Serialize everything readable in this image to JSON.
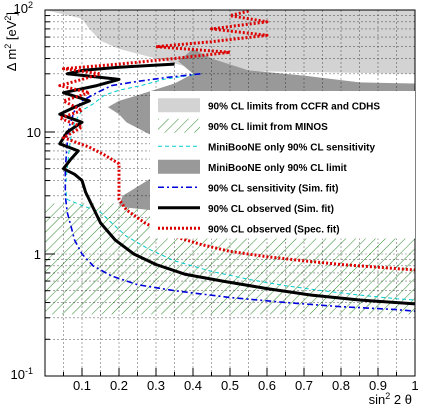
{
  "chart_data": {
    "type": "line",
    "title": "",
    "xlabel": "sin² 2 θ",
    "ylabel": "Δ m² [eV²]",
    "xlim": [
      0,
      1
    ],
    "ylim": [
      0.1,
      100
    ],
    "yscale": "log",
    "grid": true,
    "x_ticks": [
      {
        "value": 0.1,
        "label": "0.1"
      },
      {
        "value": 0.2,
        "label": "0.2"
      },
      {
        "value": 0.3,
        "label": "0.3"
      },
      {
        "value": 0.4,
        "label": "0.4"
      },
      {
        "value": 0.5,
        "label": "0.5"
      },
      {
        "value": 0.6,
        "label": "0.6"
      },
      {
        "value": 0.7,
        "label": "0.7"
      },
      {
        "value": 0.8,
        "label": "0.8"
      },
      {
        "value": 0.9,
        "label": "0.9"
      },
      {
        "value": 1.0,
        "label": "1"
      }
    ],
    "y_ticks": [
      {
        "value": 0.1,
        "label": "10",
        "sup": "-1"
      },
      {
        "value": 1,
        "label": "1",
        "sup": ""
      },
      {
        "value": 10,
        "label": "10",
        "sup": ""
      },
      {
        "value": 100,
        "label": "10",
        "sup": "2"
      }
    ],
    "legend_position": "center-right",
    "series": [
      {
        "name": "90% CL limits from CCFR and CDHS",
        "style": "fill",
        "color": "#d3d3d3",
        "polygon": [
          [
            0,
            100
          ],
          [
            1,
            100
          ],
          [
            1,
            30
          ],
          [
            0.42,
            32
          ],
          [
            0.3,
            40
          ],
          [
            0.2,
            48
          ],
          [
            0.15,
            56
          ],
          [
            0.12,
            70
          ],
          [
            0.1,
            85
          ],
          [
            0,
            100
          ]
        ]
      },
      {
        "name": "90% CL limit from MINOS",
        "style": "hatch",
        "color": "#2e8b2e",
        "polygon": [
          [
            0,
            2.6
          ],
          [
            1,
            2.6
          ],
          [
            1,
            0.32
          ],
          [
            0,
            0.32
          ]
        ]
      },
      {
        "name": "MiniBooNE only 90% CL sensitivity",
        "style": "dashed",
        "color": "#00cccc",
        "points": [
          [
            0.42,
            30
          ],
          [
            0.32,
            27
          ],
          [
            0.26,
            24
          ],
          [
            0.2,
            22
          ],
          [
            0.16,
            20
          ],
          [
            0.13,
            17
          ],
          [
            0.1,
            15
          ],
          [
            0.08,
            12
          ],
          [
            0.07,
            9
          ],
          [
            0.065,
            7
          ],
          [
            0.06,
            5
          ],
          [
            0.055,
            3.5
          ],
          [
            0.06,
            2.8
          ],
          [
            0.1,
            2.5
          ],
          [
            0.15,
            2.2
          ],
          [
            0.18,
            1.8
          ],
          [
            0.22,
            1.4
          ],
          [
            0.28,
            1.1
          ],
          [
            0.35,
            0.88
          ],
          [
            0.45,
            0.72
          ],
          [
            0.55,
            0.62
          ],
          [
            0.65,
            0.55
          ],
          [
            0.75,
            0.5
          ],
          [
            0.85,
            0.46
          ],
          [
            0.95,
            0.43
          ],
          [
            1.0,
            0.42
          ]
        ]
      },
      {
        "name": "MiniBooNE only 90% CL limit",
        "style": "fill",
        "color": "#999999",
        "polygon": [
          [
            0.4,
            48
          ],
          [
            0.45,
            40
          ],
          [
            0.55,
            32
          ],
          [
            0.7,
            29
          ],
          [
            0.85,
            25.5
          ],
          [
            1,
            25
          ],
          [
            1,
            1.6
          ],
          [
            0.92,
            1.7
          ],
          [
            0.8,
            1.75
          ],
          [
            0.6,
            1.9
          ],
          [
            0.45,
            2
          ],
          [
            0.35,
            2.15
          ],
          [
            0.28,
            2.3
          ],
          [
            0.22,
            2.4
          ],
          [
            0.2,
            2.5
          ],
          [
            0.21,
            3
          ],
          [
            0.35,
            5.5
          ],
          [
            0.3,
            9
          ],
          [
            0.22,
            12
          ],
          [
            0.2,
            14
          ],
          [
            0.17,
            16
          ],
          [
            0.2,
            18
          ],
          [
            0.25,
            20
          ],
          [
            0.35,
            25
          ],
          [
            0.4,
            30
          ],
          [
            0.36,
            38
          ],
          [
            0.4,
            48
          ]
        ]
      },
      {
        "name": "90% CL sensitivity (Sim. fit)",
        "style": "dashdot",
        "color": "#0000dd",
        "points": [
          [
            0.42,
            30
          ],
          [
            0.33,
            28
          ],
          [
            0.25,
            26
          ],
          [
            0.18,
            24
          ],
          [
            0.14,
            21
          ],
          [
            0.1,
            18
          ],
          [
            0.08,
            15
          ],
          [
            0.065,
            11
          ],
          [
            0.06,
            8
          ],
          [
            0.055,
            5
          ],
          [
            0.055,
            3
          ],
          [
            0.06,
            2.2
          ],
          [
            0.07,
            1.7
          ],
          [
            0.08,
            1.3
          ],
          [
            0.1,
            1.0
          ],
          [
            0.13,
            0.8
          ],
          [
            0.18,
            0.66
          ],
          [
            0.25,
            0.56
          ],
          [
            0.35,
            0.5
          ],
          [
            0.5,
            0.44
          ],
          [
            0.65,
            0.4
          ],
          [
            0.8,
            0.37
          ],
          [
            0.95,
            0.35
          ],
          [
            1.0,
            0.34
          ]
        ]
      },
      {
        "name": "90% CL observed (Sim. fit)",
        "style": "solid",
        "color": "#000000",
        "points": [
          [
            0.35,
            36
          ],
          [
            0.2,
            34
          ],
          [
            0.1,
            32
          ],
          [
            0.06,
            30
          ],
          [
            0.2,
            27
          ],
          [
            0.14,
            24
          ],
          [
            0.05,
            21
          ],
          [
            0.12,
            18
          ],
          [
            0.08,
            16
          ],
          [
            0.04,
            14
          ],
          [
            0.1,
            12
          ],
          [
            0.06,
            10
          ],
          [
            0.04,
            8
          ],
          [
            0.09,
            7
          ],
          [
            0.07,
            6
          ],
          [
            0.05,
            5
          ],
          [
            0.08,
            4.5
          ],
          [
            0.1,
            4
          ],
          [
            0.11,
            3.2
          ],
          [
            0.13,
            2.4
          ],
          [
            0.15,
            1.8
          ],
          [
            0.19,
            1.3
          ],
          [
            0.24,
            1.0
          ],
          [
            0.3,
            0.82
          ],
          [
            0.38,
            0.68
          ],
          [
            0.48,
            0.6
          ],
          [
            0.6,
            0.52
          ],
          [
            0.72,
            0.46
          ],
          [
            0.85,
            0.42
          ],
          [
            1.0,
            0.39
          ]
        ]
      },
      {
        "name": "90% CL observed (Spec. fit)",
        "style": "dotted",
        "color": "#dd0000",
        "points": [
          [
            0.55,
            98
          ],
          [
            0.5,
            90
          ],
          [
            0.6,
            80
          ],
          [
            0.45,
            70
          ],
          [
            0.6,
            62
          ],
          [
            0.45,
            55
          ],
          [
            0.3,
            50
          ],
          [
            0.5,
            45
          ],
          [
            0.35,
            40
          ],
          [
            0.2,
            36
          ],
          [
            0.05,
            33
          ],
          [
            0.15,
            30
          ],
          [
            0.1,
            27
          ],
          [
            0.04,
            24
          ],
          [
            0.12,
            21
          ],
          [
            0.05,
            18
          ],
          [
            0.1,
            15
          ],
          [
            0.04,
            13
          ],
          [
            0.1,
            11
          ],
          [
            0.05,
            9
          ],
          [
            0.12,
            7.5
          ],
          [
            0.16,
            6.5
          ],
          [
            0.2,
            5.5
          ],
          [
            0.2,
            4.5
          ],
          [
            0.2,
            3.5
          ],
          [
            0.2,
            2.8
          ],
          [
            0.22,
            2.3
          ],
          [
            0.27,
            1.8
          ],
          [
            0.33,
            1.45
          ],
          [
            0.42,
            1.2
          ],
          [
            0.5,
            1.05
          ],
          [
            0.6,
            0.95
          ],
          [
            0.7,
            0.88
          ],
          [
            0.8,
            0.82
          ],
          [
            0.9,
            0.78
          ],
          [
            1.0,
            0.74
          ]
        ]
      }
    ]
  }
}
